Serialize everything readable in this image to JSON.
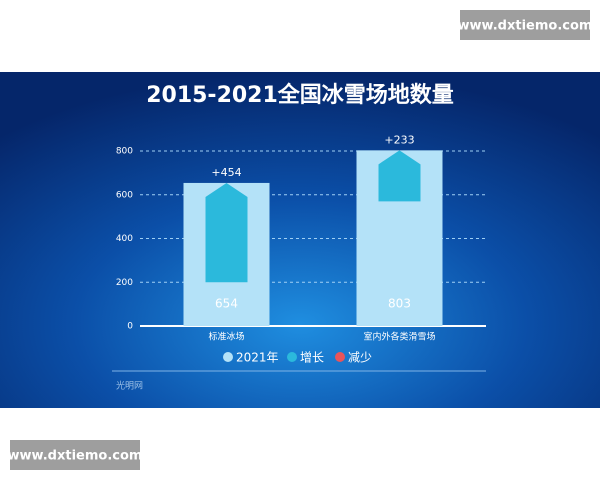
{
  "watermarks": [
    "www.dxtiemo.com",
    "www.dxtiemo.com"
  ],
  "source": "光明网",
  "chart_data": {
    "type": "waterfall-bar",
    "title": "2015-2021全国冰雪场地数量",
    "categories": [
      "标准冰场",
      "室内外各类滑雪场"
    ],
    "series": [
      {
        "name": "2021年",
        "color": "#b4e2f8",
        "values": [
          654,
          803
        ]
      },
      {
        "name": "增长",
        "color": "#2bb9dc",
        "values": [
          454,
          233
        ],
        "value_labels": [
          "+454",
          "+233"
        ]
      },
      {
        "name": "减少",
        "color": "#e8545a",
        "values": [
          null,
          null
        ]
      }
    ],
    "ylim": [
      0,
      800
    ],
    "yticks": [
      0,
      200,
      400,
      600,
      800
    ],
    "grid": true,
    "legend": "bottom"
  }
}
